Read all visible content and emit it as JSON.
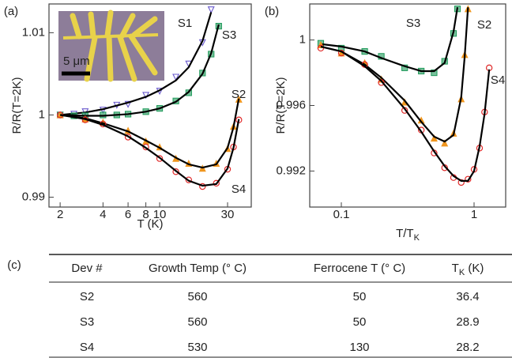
{
  "chart_data": [
    {
      "type": "scatter",
      "panel": "(a)",
      "ylabel": "R/R(T=2K)",
      "xlabel": "T (K)",
      "xlog": true,
      "xlim": [
        1.67,
        44
      ],
      "ylim": [
        0.9888,
        1.0135
      ],
      "xticks": [
        2,
        4,
        6,
        8,
        10,
        30
      ],
      "yticks": [
        0.99,
        1,
        1.01
      ],
      "inset_label": "5 μm",
      "series": [
        {
          "name": "S1",
          "color": "#6a5acd",
          "marker": "triangle-down",
          "x": [
            2,
            2.5,
            3,
            4,
            5,
            6,
            8,
            10,
            13,
            16,
            20,
            23
          ],
          "values": [
            1.0,
            1.0001,
            1.0004,
            1.0006,
            1.0012,
            1.0013,
            1.0024,
            1.0029,
            1.0046,
            1.0062,
            1.0088,
            1.0128
          ],
          "fit_x": [
            2,
            3,
            4,
            6,
            8,
            10,
            13,
            16,
            20,
            23
          ],
          "fit_values": [
            1.0,
            1.0003,
            1.0007,
            1.0015,
            1.0022,
            1.003,
            1.0042,
            1.0058,
            1.009,
            1.0125
          ]
        },
        {
          "name": "S3",
          "color": "#1f9a5a",
          "marker": "square",
          "x": [
            2,
            2.5,
            3,
            4,
            5,
            6,
            8,
            10,
            13,
            16,
            20,
            23,
            26
          ],
          "values": [
            1.0,
            0.9999,
            0.9999,
            1.0,
            1.0,
            1.0001,
            1.0004,
            1.0008,
            1.0017,
            1.0027,
            1.0051,
            1.0074,
            1.0108
          ],
          "fit_x": [
            2,
            3,
            4,
            6,
            8,
            10,
            13,
            16,
            20,
            23,
            26
          ],
          "fit_values": [
            1.0,
            0.9999,
            0.9999,
            1.0001,
            1.0004,
            1.0008,
            1.0016,
            1.0028,
            1.005,
            1.0075,
            1.011
          ]
        },
        {
          "name": "S2",
          "color": "#f0961e",
          "marker": "triangle-up",
          "x": [
            2,
            3,
            4,
            6,
            8,
            10,
            13,
            16,
            20,
            25,
            30,
            33,
            36
          ],
          "values": [
            1.0,
            0.9995,
            0.9991,
            0.9981,
            0.9968,
            0.9961,
            0.9947,
            0.9941,
            0.9935,
            0.9941,
            0.9959,
            0.9986,
            1.0019
          ],
          "fit_x": [
            2,
            3,
            4,
            6,
            8,
            10,
            13,
            16,
            20,
            25,
            30,
            33,
            36
          ],
          "fit_values": [
            1.0,
            0.9996,
            0.999,
            0.998,
            0.9969,
            0.996,
            0.9948,
            0.994,
            0.9936,
            0.994,
            0.996,
            0.9985,
            1.002
          ]
        },
        {
          "name": "S4",
          "color": "#e02828",
          "marker": "circle",
          "x": [
            2,
            3,
            4,
            6,
            8,
            10,
            13,
            16,
            20,
            25,
            30,
            33,
            36
          ],
          "values": [
            1.0,
            0.9994,
            0.9989,
            0.9973,
            0.9961,
            0.9947,
            0.9931,
            0.9921,
            0.9913,
            0.9917,
            0.9934,
            0.9961,
            0.9994
          ],
          "fit_x": [
            2,
            3,
            4,
            6,
            8,
            10,
            13,
            16,
            20,
            25,
            30,
            33,
            36
          ],
          "fit_values": [
            1.0,
            0.9995,
            0.9988,
            0.9974,
            0.996,
            0.9948,
            0.9932,
            0.992,
            0.9914,
            0.9916,
            0.9935,
            0.996,
            0.9995
          ]
        }
      ]
    },
    {
      "type": "scatter",
      "panel": "(b)",
      "ylabel": "R/R(T=2K)",
      "xlabel": "T/T",
      "xlabel_sub": "K",
      "xlog": true,
      "xlim": [
        0.0578,
        1.73
      ],
      "ylim": [
        0.9898,
        1.0022
      ],
      "xticks": [
        0.1,
        1
      ],
      "yticks": [
        0.992,
        0.996,
        1
      ],
      "series": [
        {
          "name": "S3",
          "color": "#1f9a5a",
          "marker": "square",
          "x": [
            0.07,
            0.1,
            0.15,
            0.2,
            0.3,
            0.4,
            0.5,
            0.6,
            0.7,
            0.75
          ],
          "values": [
            0.9998,
            0.9995,
            0.9993,
            0.999,
            0.9983,
            0.9981,
            0.998,
            0.9987,
            1.0004,
            1.0019
          ],
          "fit_x": [
            0.07,
            0.1,
            0.15,
            0.2,
            0.3,
            0.4,
            0.5,
            0.6,
            0.7,
            0.75
          ],
          "fit_values": [
            0.99975,
            0.9996,
            0.9993,
            0.9989,
            0.9984,
            0.9981,
            0.9981,
            0.9986,
            1.0005,
            1.002
          ]
        },
        {
          "name": "S2",
          "color": "#f0961e",
          "marker": "triangle-up",
          "x": [
            0.07,
            0.1,
            0.15,
            0.2,
            0.3,
            0.4,
            0.5,
            0.6,
            0.7,
            0.8,
            0.85,
            0.9
          ],
          "values": [
            0.9997,
            0.9992,
            0.9986,
            0.9976,
            0.9962,
            0.9951,
            0.994,
            0.9937,
            0.9943,
            0.9964,
            0.9991,
            1.0019
          ],
          "fit_x": [
            0.07,
            0.1,
            0.15,
            0.2,
            0.3,
            0.4,
            0.5,
            0.6,
            0.7,
            0.8,
            0.85,
            0.9
          ],
          "fit_values": [
            0.9996,
            0.9993,
            0.9985,
            0.9977,
            0.9963,
            0.995,
            0.9941,
            0.9938,
            0.9942,
            0.9965,
            0.999,
            1.002
          ]
        },
        {
          "name": "S4",
          "color": "#e02828",
          "marker": "circle",
          "x": [
            0.07,
            0.1,
            0.15,
            0.2,
            0.3,
            0.4,
            0.5,
            0.6,
            0.7,
            0.8,
            0.9,
            1.0,
            1.1,
            1.2,
            1.3
          ],
          "values": [
            0.9995,
            0.9992,
            0.9985,
            0.9974,
            0.9957,
            0.9945,
            0.9931,
            0.9922,
            0.9916,
            0.9913,
            0.9915,
            0.9921,
            0.9934,
            0.9956,
            0.9983
          ],
          "fit_x": [
            0.07,
            0.1,
            0.15,
            0.2,
            0.3,
            0.4,
            0.5,
            0.6,
            0.7,
            0.8,
            0.9,
            1.0,
            1.1,
            1.2,
            1.3
          ],
          "fit_values": [
            0.9996,
            0.9993,
            0.9984,
            0.9975,
            0.9958,
            0.9944,
            0.9932,
            0.9923,
            0.9917,
            0.9914,
            0.9914,
            0.992,
            0.9935,
            0.9955,
            0.9982
          ]
        }
      ]
    }
  ],
  "table": {
    "panel": "(c)",
    "headers": [
      "Dev #",
      "Growth Temp (° C)",
      "Ferrocene T (° C)",
      {
        "main": "T",
        "sub": "K",
        "rest": " (K)"
      }
    ],
    "rows": [
      [
        "S2",
        560,
        50,
        36.4
      ],
      [
        "S3",
        560,
        50,
        28.9
      ],
      [
        "S4",
        530,
        130,
        28.2
      ]
    ]
  }
}
